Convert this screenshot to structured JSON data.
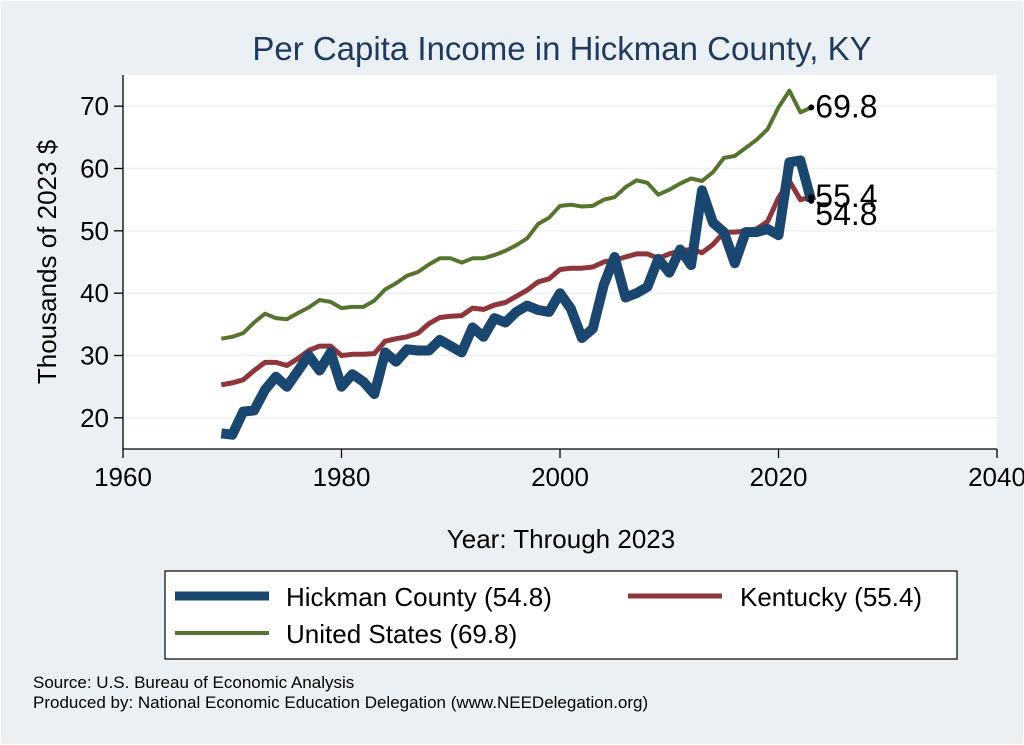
{
  "chart_data": {
    "type": "line",
    "title": "Per Capita Income in Hickman County, KY",
    "xlabel": "Year: Through 2023",
    "ylabel": "Thousands of 2023 $",
    "xlim": [
      1960,
      2040
    ],
    "ylim": [
      15,
      75
    ],
    "xticks": [
      1960,
      1980,
      2000,
      2020,
      2040
    ],
    "yticks": [
      20,
      30,
      40,
      50,
      60,
      70
    ],
    "x": [
      1969,
      1970,
      1971,
      1972,
      1973,
      1974,
      1975,
      1976,
      1977,
      1978,
      1979,
      1980,
      1981,
      1982,
      1983,
      1984,
      1985,
      1986,
      1987,
      1988,
      1989,
      1990,
      1991,
      1992,
      1993,
      1994,
      1995,
      1996,
      1997,
      1998,
      1999,
      2000,
      2001,
      2002,
      2003,
      2004,
      2005,
      2006,
      2007,
      2008,
      2009,
      2010,
      2011,
      2012,
      2013,
      2014,
      2015,
      2016,
      2017,
      2018,
      2019,
      2020,
      2021,
      2022,
      2023
    ],
    "series": [
      {
        "name": "Hickman County",
        "color": "#1a476f",
        "end_label": "54.8",
        "legend_label": "Hickman County (54.8)",
        "values": [
          17.5,
          17.3,
          21.0,
          21.2,
          24.5,
          26.6,
          25.0,
          27.5,
          30.0,
          27.6,
          30.5,
          25.0,
          27.0,
          25.8,
          23.8,
          30.5,
          29.0,
          31.0,
          30.8,
          30.8,
          32.5,
          31.5,
          30.5,
          34.5,
          33.0,
          36.0,
          35.3,
          37.0,
          38.0,
          37.3,
          37.0,
          40.0,
          37.5,
          32.8,
          34.3,
          41.3,
          45.8,
          39.3,
          40.0,
          41.0,
          45.5,
          43.3,
          47.0,
          44.5,
          56.5,
          51.3,
          49.8,
          44.8,
          49.8,
          49.8,
          50.3,
          49.3,
          61.0,
          61.3,
          54.8
        ]
      },
      {
        "name": "Kentucky",
        "color": "#90353b",
        "end_label": "55.4",
        "legend_label": "Kentucky (55.4)",
        "values": [
          25.3,
          25.6,
          26.1,
          27.6,
          28.9,
          28.9,
          28.4,
          29.5,
          30.8,
          31.5,
          31.5,
          30.0,
          30.2,
          30.2,
          30.3,
          32.3,
          32.7,
          33.0,
          33.6,
          35.1,
          36.1,
          36.3,
          36.4,
          37.6,
          37.4,
          38.1,
          38.5,
          39.5,
          40.5,
          41.8,
          42.3,
          43.8,
          44.0,
          44.0,
          44.2,
          45.0,
          45.3,
          45.8,
          46.3,
          46.3,
          45.6,
          46.3,
          46.8,
          47.0,
          46.5,
          47.8,
          49.8,
          49.8,
          50.0,
          50.3,
          51.5,
          55.3,
          58.0,
          55.0,
          55.4
        ]
      },
      {
        "name": "United States",
        "color": "#55752f",
        "end_label": "69.8",
        "legend_label": "United States (69.8)",
        "values": [
          32.7,
          33.0,
          33.6,
          35.3,
          36.7,
          36.0,
          35.8,
          36.8,
          37.7,
          38.9,
          38.6,
          37.6,
          37.8,
          37.8,
          38.8,
          40.6,
          41.6,
          42.8,
          43.4,
          44.6,
          45.6,
          45.6,
          44.9,
          45.6,
          45.6,
          46.1,
          46.8,
          47.7,
          48.8,
          51.1,
          52.1,
          54.0,
          54.2,
          53.9,
          54.0,
          55.0,
          55.4,
          57.0,
          58.1,
          57.7,
          55.8,
          56.6,
          57.6,
          58.4,
          58.0,
          59.4,
          61.7,
          62.0,
          63.3,
          64.6,
          66.3,
          69.8,
          72.5,
          69.0,
          69.8
        ]
      }
    ],
    "legend_position": "bottom"
  },
  "source_line": "Source: U.S. Bureau of Economic Analysis",
  "produced_line": "Produced by: National Economic Education Delegation (www.NEEDelegation.org)"
}
